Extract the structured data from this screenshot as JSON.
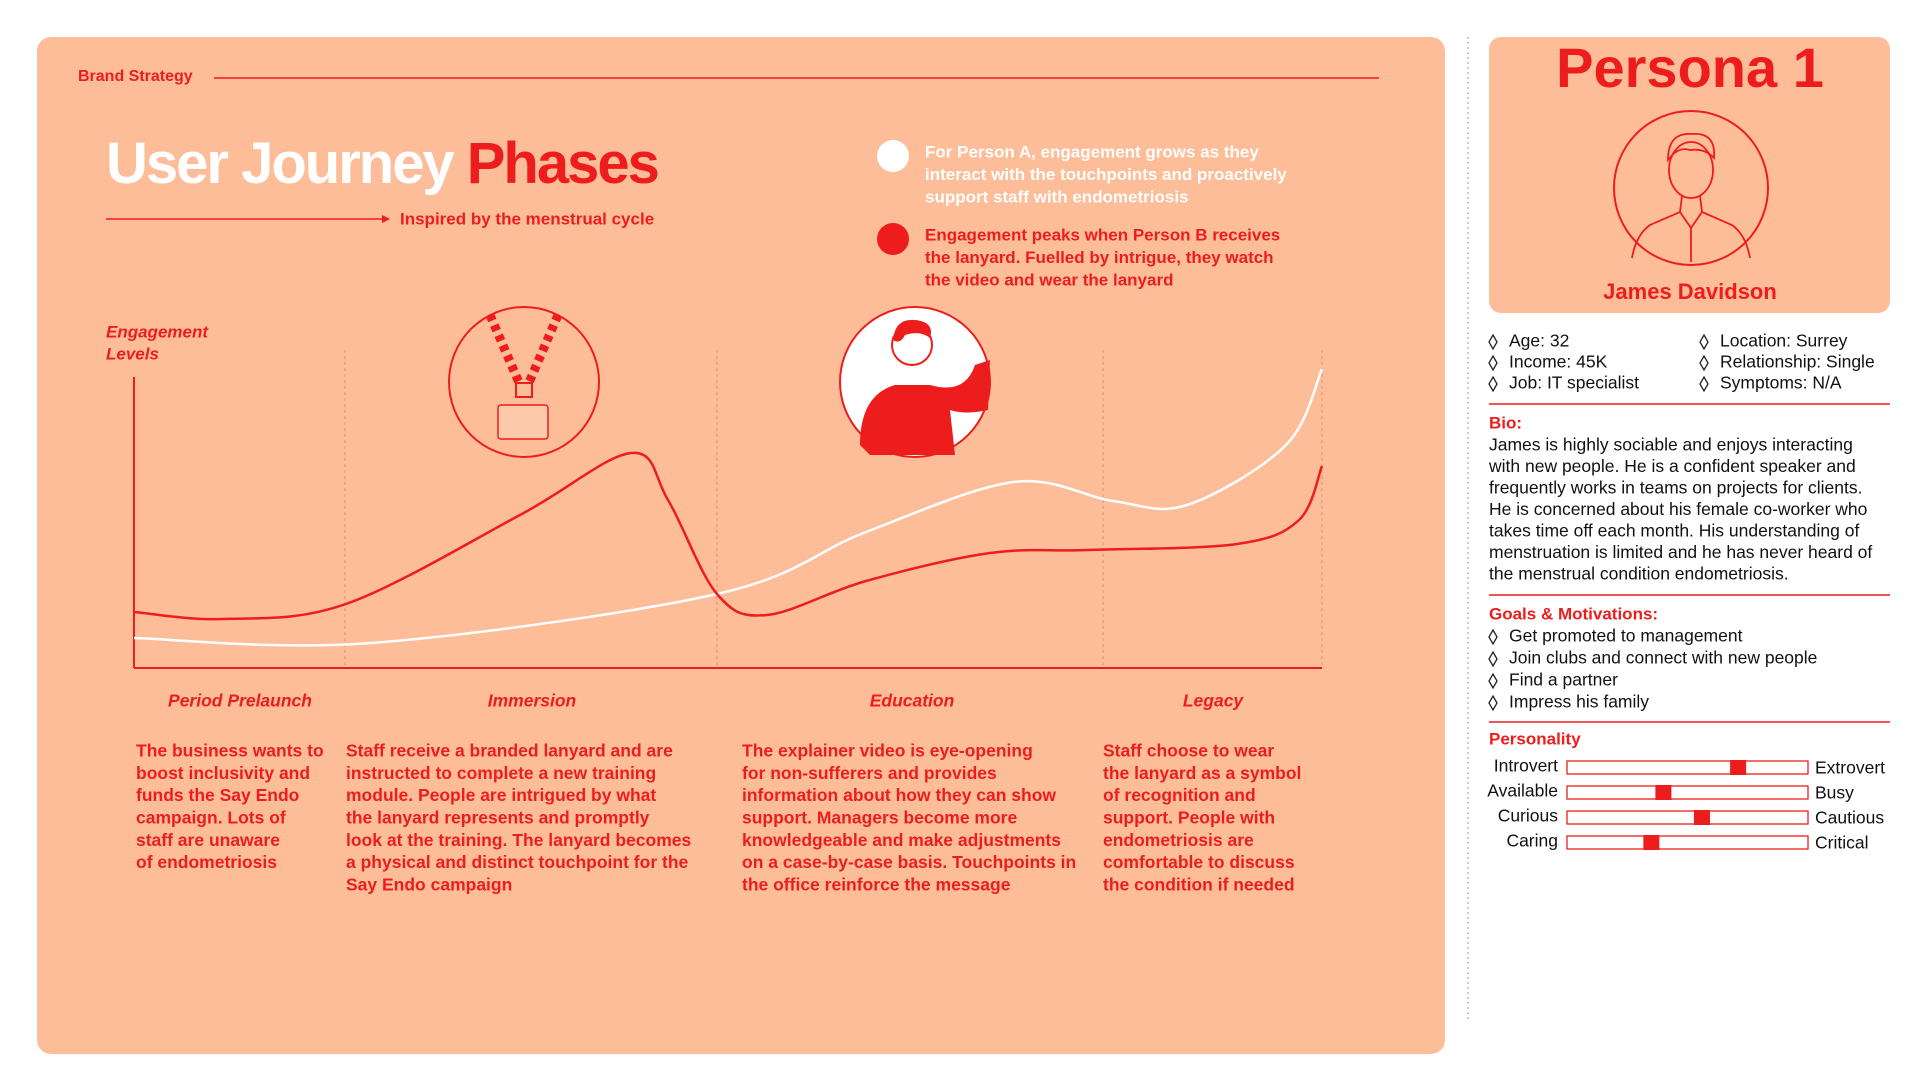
{
  "header": {
    "section": "Brand Strategy",
    "title_white": "User Journey",
    "title_red": "Phases",
    "subtitle": "Inspired by the menstrual cycle"
  },
  "legend": [
    {
      "color": "#ffffff",
      "lines": [
        "For Person A, engagement grows as they",
        "interact with the touchpoints and proactively",
        "support staff with endometriosis"
      ]
    },
    {
      "color": "#ee1d1d",
      "lines": [
        "Engagement peaks when Person B receives",
        "the lanyard. Fuelled by intrigue, they watch",
        "the video and wear the lanyard"
      ]
    }
  ],
  "chart": {
    "y_label_lines": [
      "Engagement",
      "Levels"
    ]
  },
  "phases": [
    {
      "name": "Period Prelaunch",
      "lines": [
        "The business wants to",
        "boost inclusivity and",
        "funds the Say Endo",
        "campaign. Lots of",
        "staff are unaware",
        "of endometriosis"
      ]
    },
    {
      "name": "Immersion",
      "lines": [
        "Staff receive a branded lanyard and are",
        "instructed to complete a new training",
        "module. People are intrigued by what",
        "the lanyard represents and promptly",
        "look at the training. The lanyard becomes",
        "a physical and distinct touchpoint for the",
        "Say Endo campaign"
      ]
    },
    {
      "name": "Education",
      "lines": [
        "The explainer video is eye-opening",
        "for non-sufferers and provides",
        "information about how they can show",
        "support. Managers become more",
        "knowledgeable and make adjustments",
        "on a case-by-case basis. Touchpoints in",
        "the office reinforce the message"
      ]
    },
    {
      "name": "Legacy",
      "lines": [
        "Staff choose to wear",
        "the lanyard as a symbol",
        "of recognition and",
        "support. People with",
        "endometriosis are",
        "comfortable to discuss",
        "the condition if needed"
      ]
    }
  ],
  "persona": {
    "title": "Persona 1",
    "name": "James Davidson",
    "details": [
      "Age: 32",
      "Income: 45K",
      "Job: IT specialist",
      "Location: Surrey",
      "Relationship: Single",
      "Symptoms: N/A"
    ],
    "bio_heading": "Bio:",
    "bio_lines": [
      "James is highly sociable and enjoys interacting",
      "with new people. He is a confident speaker and",
      "frequently works in teams on projects for clients.",
      "He is concerned about his female co-worker who",
      "takes time off each month. His understanding of",
      "menstruation is limited and he has never heard of",
      "the menstrual condition endometriosis."
    ],
    "goals_heading": "Goals & Motivations:",
    "goals": [
      "Get promoted to management",
      "Join clubs and connect with new people",
      "Find a partner",
      "Impress his family"
    ],
    "personality_heading": "Personality",
    "traits": [
      {
        "left": "Introvert",
        "right": "Extrovert",
        "value": 71
      },
      {
        "left": "Available",
        "right": "Busy",
        "value": 40
      },
      {
        "left": "Curious",
        "right": "Cautious",
        "value": 56
      },
      {
        "left": "Caring",
        "right": "Critical",
        "value": 35
      }
    ]
  }
}
